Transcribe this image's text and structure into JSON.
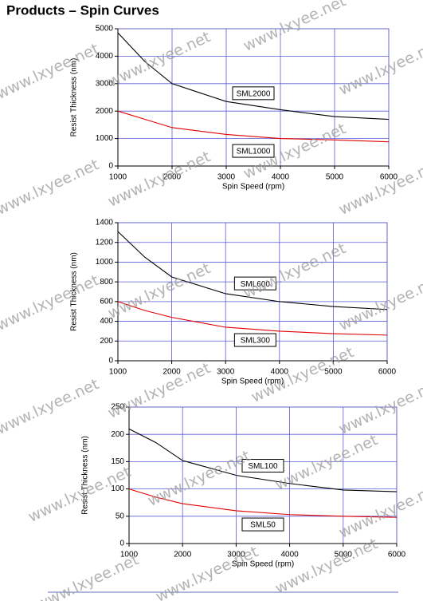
{
  "title": "Products – Spin Curves",
  "watermark": "www.lxyee.net",
  "chart_data": [
    {
      "type": "line",
      "x_label": "Spin Speed (rpm)",
      "y_label": "Resist Thickness (nm)",
      "x": [
        1000,
        1500,
        2000,
        3000,
        4000,
        5000,
        6000
      ],
      "xlim": [
        1000,
        6000
      ],
      "xticks": [
        1000,
        2000,
        3000,
        4000,
        5000,
        6000
      ],
      "ylim": [
        0,
        5000
      ],
      "yticks": [
        0,
        1000,
        2000,
        3000,
        4000,
        5000
      ],
      "grid": true,
      "series": [
        {
          "name": "SML2000",
          "color": "#000000",
          "values": [
            4850,
            3800,
            3000,
            2350,
            2050,
            1800,
            1700
          ]
        },
        {
          "name": "SML1000",
          "color": "#e00000",
          "values": [
            2000,
            1700,
            1400,
            1150,
            1000,
            950,
            880
          ]
        }
      ]
    },
    {
      "type": "line",
      "x_label": "Spin Speed (rpm)",
      "y_label": "Resist Thickness (nm)",
      "x": [
        1000,
        1500,
        2000,
        3000,
        4000,
        5000,
        6000
      ],
      "xlim": [
        1000,
        6000
      ],
      "xticks": [
        1000,
        2000,
        3000,
        4000,
        5000,
        6000
      ],
      "ylim": [
        0,
        1400
      ],
      "yticks": [
        0,
        200,
        400,
        600,
        800,
        1000,
        1200,
        1400
      ],
      "grid": true,
      "series": [
        {
          "name": "SML600",
          "color": "#000000",
          "values": [
            1310,
            1050,
            850,
            680,
            600,
            550,
            520
          ]
        },
        {
          "name": "SML300",
          "color": "#e00000",
          "values": [
            600,
            510,
            440,
            340,
            300,
            275,
            260
          ]
        }
      ]
    },
    {
      "type": "line",
      "x_label": "Spin Speed (rpm)",
      "y_label": "Resist Thickness (nm)",
      "x": [
        1000,
        1500,
        2000,
        3000,
        4000,
        5000,
        6000
      ],
      "xlim": [
        1000,
        6000
      ],
      "xticks": [
        1000,
        2000,
        3000,
        4000,
        5000,
        6000
      ],
      "ylim": [
        0,
        250
      ],
      "yticks": [
        0,
        50,
        100,
        150,
        200,
        250
      ],
      "grid": true,
      "series": [
        {
          "name": "SML100",
          "color": "#000000",
          "values": [
            210,
            185,
            152,
            125,
            110,
            98,
            95
          ]
        },
        {
          "name": "SML50",
          "color": "#e00000",
          "values": [
            100,
            85,
            73,
            60,
            53,
            50,
            48
          ]
        }
      ]
    }
  ]
}
